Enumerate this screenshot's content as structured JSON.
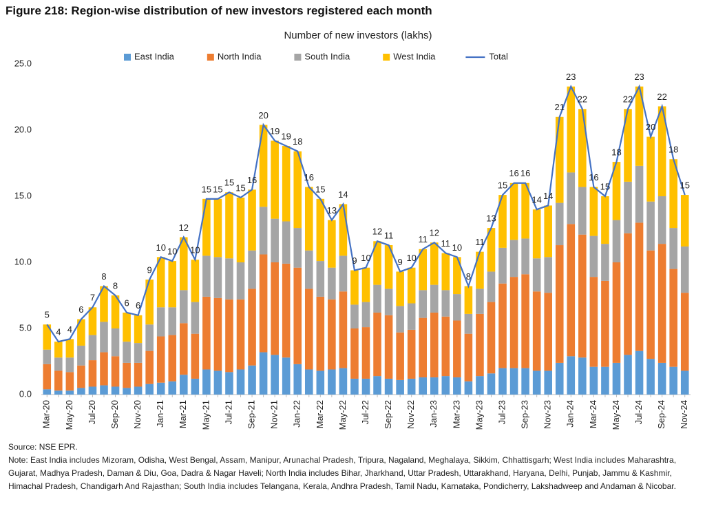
{
  "chart_data": {
    "type": "stacked-bar-line",
    "title": "Figure 218: Region-wise distribution of new investors registered each month",
    "subtitle": "Number of new investors (lakhs)",
    "source": "Source: NSE EPR.",
    "note": "Note: East India includes Mizoram, Odisha, West Bengal,  Assam, Manipur, Arunachal Pradesh, Tripura, Nagaland, Meghalaya, Sikkim, Chhattisgarh; West India includes Maharashtra, Gujarat, Madhya Pradesh, Daman & Diu, Goa, Dadra & Nagar Haveli; North India includes Bihar, Jharkhand, Uttar Pradesh, Uttarakhand, Haryana, Delhi, Punjab, Jammu & Kashmir, Himachal Pradesh, Chandigarh And Rajasthan; South India includes Telangana, Kerala, Andhra Pradesh, Tamil Nadu, Karnataka, Pondicherry, Lakshadweep and Andaman & Nicobar.",
    "categories": [
      "Mar-20",
      null,
      "May-20",
      null,
      "Jul-20",
      null,
      "Sep-20",
      null,
      "Nov-20",
      null,
      "Jan-21",
      null,
      "Mar-21",
      null,
      "May-21",
      null,
      "Jul-21",
      null,
      "Sep-21",
      null,
      "Nov-21",
      null,
      "Jan-22",
      null,
      "Mar-22",
      null,
      "May-22",
      null,
      "Jul-22",
      null,
      "Sep-22",
      null,
      "Nov-22",
      null,
      "Jan-23",
      null,
      "Mar-23",
      null,
      "May-23",
      null,
      "Jul-23",
      null,
      "Sep-23",
      null,
      "Nov-23",
      null,
      "Jan-24",
      null,
      "Mar-24",
      null,
      "May-24",
      null,
      "Jul-24",
      null,
      "Sep-24",
      null,
      "Nov-24"
    ],
    "ylim": [
      0,
      25
    ],
    "yticks": [
      {
        "value": 0,
        "label": "0.0"
      },
      {
        "value": 5,
        "label": "5.0"
      },
      {
        "value": 10,
        "label": "10.0"
      },
      {
        "value": 15,
        "label": "15.0"
      },
      {
        "value": 20,
        "label": "20.0"
      },
      {
        "value": 25,
        "label": "25.0"
      }
    ],
    "series": [
      {
        "name": "East India",
        "color": "#5b9bd5",
        "values": [
          0.4,
          0.3,
          0.3,
          0.5,
          0.6,
          0.7,
          0.6,
          0.5,
          0.6,
          0.8,
          0.9,
          1.0,
          1.5,
          1.2,
          1.9,
          1.8,
          1.7,
          1.9,
          2.2,
          3.2,
          3.0,
          2.8,
          2.3,
          1.9,
          1.8,
          1.9,
          2.0,
          1.2,
          1.2,
          1.4,
          1.2,
          1.1,
          1.2,
          1.3,
          1.3,
          1.4,
          1.3,
          1.0,
          1.4,
          1.6,
          2.0,
          2.0,
          2.0,
          1.8,
          1.8,
          2.4,
          2.9,
          2.8,
          2.1,
          2.1,
          2.4,
          3.0,
          3.3,
          2.7,
          2.4,
          2.1,
          1.8
        ]
      },
      {
        "name": "North India",
        "color": "#ed7d31",
        "values": [
          1.9,
          1.5,
          1.4,
          1.7,
          2.0,
          2.5,
          2.3,
          1.9,
          1.8,
          2.5,
          3.5,
          3.5,
          3.9,
          3.4,
          5.5,
          5.5,
          5.5,
          5.3,
          5.8,
          7.4,
          7.0,
          7.1,
          7.3,
          6.1,
          5.6,
          5.3,
          5.8,
          3.8,
          3.9,
          4.8,
          4.8,
          3.6,
          3.7,
          4.5,
          4.9,
          4.5,
          4.3,
          3.6,
          4.7,
          5.4,
          6.4,
          6.9,
          7.1,
          6.0,
          5.9,
          8.9,
          10.0,
          9.3,
          6.8,
          6.5,
          7.6,
          9.2,
          9.7,
          8.2,
          9.0,
          7.4,
          5.9
        ]
      },
      {
        "name": "South India",
        "color": "#a5a5a5",
        "values": [
          1.1,
          1.0,
          1.1,
          1.5,
          1.9,
          2.3,
          2.1,
          1.6,
          1.5,
          2.0,
          2.2,
          2.1,
          2.5,
          2.4,
          3.1,
          3.1,
          3.1,
          2.8,
          2.9,
          3.6,
          3.3,
          3.2,
          3.0,
          2.9,
          2.7,
          2.4,
          2.7,
          1.8,
          1.9,
          2.1,
          2.0,
          2.0,
          2.0,
          2.1,
          2.1,
          2.0,
          2.0,
          1.5,
          1.9,
          2.3,
          2.7,
          2.8,
          2.7,
          2.5,
          2.7,
          3.2,
          3.9,
          3.6,
          3.1,
          2.8,
          3.2,
          3.9,
          4.3,
          3.7,
          3.6,
          3.1,
          3.5
        ]
      },
      {
        "name": "West India",
        "color": "#ffc000",
        "values": [
          1.9,
          1.2,
          1.4,
          2.0,
          2.1,
          2.7,
          2.5,
          2.2,
          2.1,
          3.4,
          3.8,
          3.5,
          4.0,
          3.2,
          4.3,
          4.4,
          5.0,
          4.9,
          4.6,
          6.2,
          5.9,
          5.7,
          5.8,
          4.8,
          4.7,
          3.6,
          3.9,
          2.6,
          2.6,
          3.3,
          3.3,
          2.6,
          2.7,
          3.1,
          3.2,
          2.8,
          2.8,
          2.1,
          2.8,
          3.3,
          4.0,
          4.3,
          4.2,
          3.7,
          3.9,
          6.5,
          6.5,
          5.9,
          3.7,
          3.6,
          4.4,
          5.5,
          6.0,
          4.9,
          6.8,
          5.2,
          3.9
        ]
      },
      {
        "name": "Total",
        "color": "#4472c4",
        "line": true,
        "values": [
          5.3,
          4.0,
          4.2,
          5.7,
          6.6,
          8.2,
          7.5,
          6.2,
          6.0,
          8.7,
          10.4,
          10.1,
          11.9,
          10.2,
          14.8,
          14.8,
          15.3,
          14.9,
          15.5,
          20.4,
          19.2,
          18.8,
          18.4,
          15.7,
          14.8,
          13.2,
          14.4,
          9.4,
          9.6,
          11.6,
          11.3,
          9.3,
          9.6,
          11.0,
          11.5,
          10.7,
          10.4,
          8.2,
          10.8,
          12.6,
          15.1,
          16.0,
          16.0,
          14.0,
          14.3,
          21.0,
          23.3,
          21.6,
          15.7,
          15.0,
          17.6,
          21.6,
          23.3,
          19.5,
          21.8,
          17.8,
          15.1
        ],
        "value_labels": [
          "5",
          "4",
          "4",
          "6",
          "7",
          "8",
          "8",
          "6",
          "6",
          "9",
          "10",
          "10",
          "12",
          "10",
          "15",
          "15",
          "15",
          "15",
          "16",
          "20",
          "19",
          "19",
          "18",
          "16",
          "15",
          "13",
          "14",
          "9",
          "10",
          "12",
          "11",
          "9",
          "10",
          "11",
          "12",
          "11",
          "10",
          "8",
          "11",
          "13",
          "15",
          "16",
          "16",
          "14",
          "14",
          "21",
          "23",
          "22",
          "16",
          "15",
          "18",
          "22",
          "23",
          "20",
          "22",
          "18",
          "15"
        ]
      }
    ]
  }
}
